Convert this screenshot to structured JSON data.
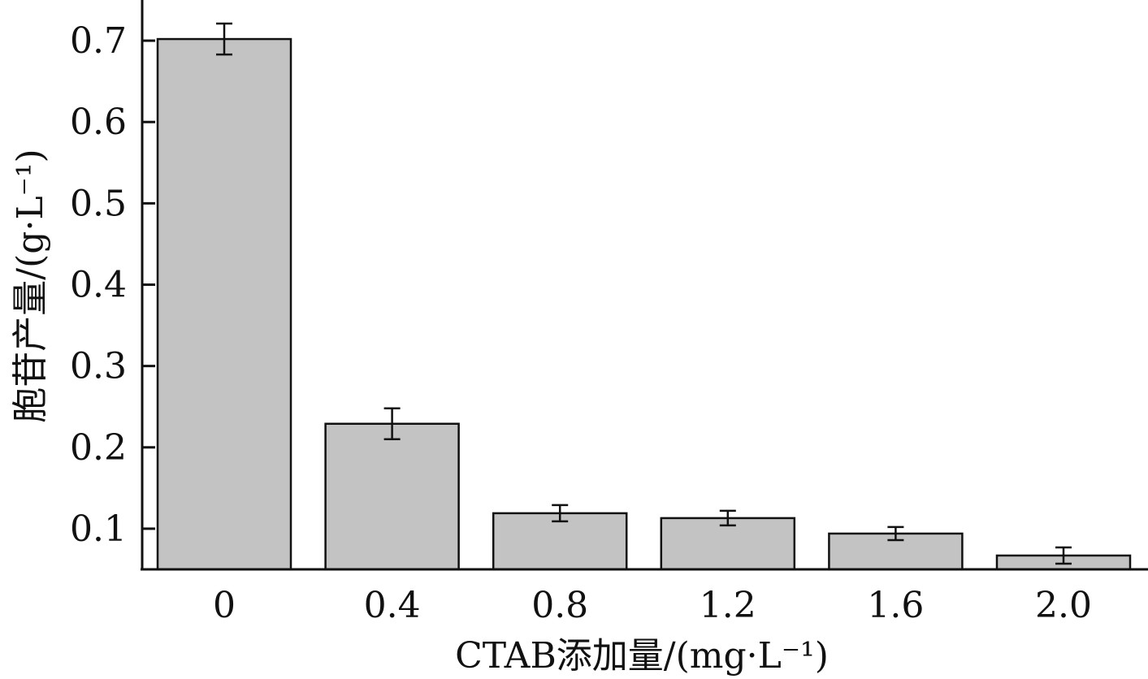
{
  "chart_data": {
    "type": "bar",
    "title": "",
    "xlabel": "CTAB添加量/(mg·L⁻¹)",
    "ylabel": "胞苷产量/(g·L⁻¹)",
    "categories": [
      "0",
      "0.4",
      "0.8",
      "1.2",
      "1.6",
      "2.0"
    ],
    "values": [
      0.702,
      0.229,
      0.119,
      0.113,
      0.094,
      0.067
    ],
    "errors": [
      0.019,
      0.019,
      0.01,
      0.009,
      0.008,
      0.01
    ],
    "yticks": [
      "0.1",
      "0.2",
      "0.3",
      "0.4",
      "0.5",
      "0.6",
      "0.7"
    ],
    "ytick_values": [
      0.1,
      0.2,
      0.3,
      0.4,
      0.5,
      0.6,
      0.7
    ],
    "ylim": [
      0.05,
      0.75
    ],
    "grid": false,
    "colors": {
      "bar_fill": "#c3c3c3",
      "outline": "#111111"
    }
  }
}
